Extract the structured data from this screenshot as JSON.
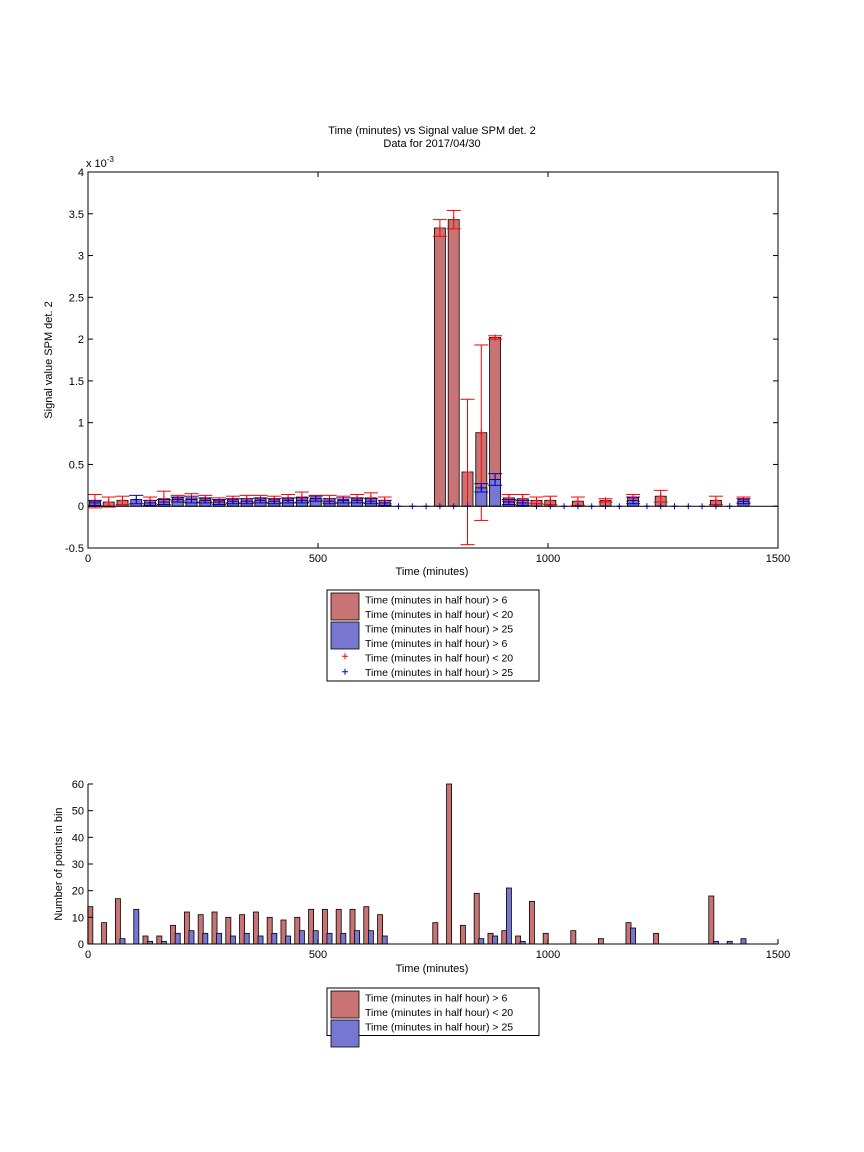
{
  "colors": {
    "red_bar": "#c87474",
    "blue_bar": "#7777d2",
    "red_marker": "#ff0000",
    "blue_marker": "#0000cc",
    "axis": "#000000"
  },
  "chart_data": [
    {
      "type": "bar",
      "title": "Time (minutes) vs Signal value SPM det. 2",
      "subtitle": "Data for 2017/04/30",
      "xlabel": "Time (minutes)",
      "ylabel": "Signal value SPM det. 2",
      "xlim": [
        0,
        1500
      ],
      "ylim": [
        -0.5,
        4
      ],
      "y_scale_label": "x 10^-3",
      "y_scale_text": "x 10",
      "y_scale_exp": "-3",
      "x_ticks": [
        0,
        500,
        1000,
        1500
      ],
      "y_ticks": [
        -0.5,
        0,
        0.5,
        1,
        1.5,
        2,
        2.5,
        3,
        3.5,
        4
      ],
      "grid": false,
      "legend_position": "below",
      "bar_width": 24,
      "series": [
        {
          "name": "Time (minutes in half hour) > 6\nTime (minutes in half hour) < 20",
          "color": "red_bar",
          "x": [
            15,
            45,
            75,
            135,
            165,
            195,
            225,
            255,
            285,
            315,
            345,
            375,
            405,
            435,
            465,
            495,
            525,
            555,
            585,
            615,
            645,
            765,
            795,
            825,
            855,
            885,
            915,
            945,
            975,
            1005,
            1065,
            1125,
            1185,
            1245,
            1365,
            1425
          ],
          "values": [
            0.06,
            0.05,
            0.07,
            0.07,
            0.09,
            0.1,
            0.1,
            0.09,
            0.07,
            0.08,
            0.09,
            0.09,
            0.08,
            0.09,
            0.11,
            0.1,
            0.09,
            0.08,
            0.09,
            0.1,
            0.07,
            3.33,
            3.43,
            0.41,
            0.88,
            2.02,
            0.1,
            0.09,
            0.07,
            0.07,
            0.06,
            0.07,
            0.1,
            0.12,
            0.07,
            0.08
          ],
          "err": [
            0.08,
            0.06,
            0.05,
            0.04,
            0.09,
            0.03,
            0.05,
            0.04,
            0.03,
            0.04,
            0.04,
            0.04,
            0.04,
            0.05,
            0.06,
            0.03,
            0.04,
            0.04,
            0.05,
            0.06,
            0.04,
            0.1,
            0.11,
            0.87,
            1.05,
            0.02,
            0.04,
            0.05,
            0.04,
            0.05,
            0.05,
            0.02,
            0.04,
            0.07,
            0.05,
            0.03
          ]
        },
        {
          "name": "Time (minutes in half hour) > 25",
          "color": "blue_bar",
          "x": [
            15,
            105,
            135,
            165,
            195,
            225,
            255,
            285,
            315,
            345,
            375,
            405,
            435,
            465,
            495,
            525,
            555,
            585,
            615,
            645,
            855,
            885,
            915,
            945,
            1185,
            1425
          ],
          "values": [
            0.04,
            0.08,
            0.04,
            0.05,
            0.08,
            0.08,
            0.07,
            0.05,
            0.06,
            0.06,
            0.07,
            0.06,
            0.07,
            0.07,
            0.09,
            0.06,
            0.07,
            0.07,
            0.06,
            0.04,
            0.22,
            0.32,
            0.05,
            0.04,
            0.07,
            0.06
          ],
          "err": [
            0.03,
            0.05,
            0.03,
            0.03,
            0.03,
            0.04,
            0.03,
            0.03,
            0.03,
            0.03,
            0.03,
            0.03,
            0.03,
            0.03,
            0.03,
            0.03,
            0.03,
            0.03,
            0.03,
            0.03,
            0.05,
            0.07,
            0.03,
            0.03,
            0.04,
            0.03
          ]
        }
      ],
      "markers": [
        {
          "name": "Time (minutes in half hour) > 6\nTime (minutes in half hour) < 20",
          "symbol": "+",
          "color": "red_marker",
          "x": [
            15,
            45,
            75,
            135,
            165,
            195,
            225,
            255,
            285,
            315,
            345,
            375,
            405,
            435,
            465,
            495,
            525,
            555,
            585,
            615,
            645,
            765,
            795,
            825,
            855,
            885,
            915,
            945,
            975,
            1005,
            1065,
            1125,
            1185,
            1245,
            1365,
            1425
          ],
          "y": [
            0.06,
            0.05,
            0.07,
            0.07,
            0.09,
            0.1,
            0.1,
            0.09,
            0.07,
            0.08,
            0.09,
            0.09,
            0.08,
            0.09,
            0.11,
            0.1,
            0.09,
            0.08,
            0.09,
            0.1,
            0.07,
            3.33,
            3.43,
            0.41,
            0.88,
            2.02,
            0.1,
            0.09,
            0.07,
            0.07,
            0.06,
            0.07,
            0.1,
            0.12,
            0.07,
            0.08
          ]
        },
        {
          "name": "Time (minutes in half hour) > 25",
          "symbol": "+",
          "color": "blue_marker",
          "x": [
            15,
            105,
            135,
            165,
            195,
            225,
            255,
            285,
            315,
            345,
            375,
            405,
            435,
            465,
            495,
            525,
            555,
            585,
            615,
            645,
            675,
            705,
            735,
            765,
            795,
            825,
            855,
            885,
            915,
            945,
            975,
            1005,
            1035,
            1065,
            1095,
            1125,
            1155,
            1185,
            1215,
            1245,
            1275,
            1305,
            1335,
            1365,
            1395,
            1425
          ],
          "y": [
            0.04,
            0.08,
            0.04,
            0.05,
            0.08,
            0.08,
            0.07,
            0.05,
            0.06,
            0.06,
            0.07,
            0.06,
            0.07,
            0.07,
            0.09,
            0.06,
            0.07,
            0.07,
            0.06,
            0.04,
            0,
            0,
            0,
            0,
            0,
            0,
            0.22,
            0.32,
            0.05,
            0.04,
            0,
            0,
            0,
            0,
            0,
            0,
            0,
            0.07,
            0,
            0,
            0,
            0,
            0,
            0,
            0,
            0.06
          ]
        }
      ],
      "legend": [
        {
          "label": "Time (minutes in half hour) > 6",
          "swatch": "red_bar"
        },
        {
          "label": "Time (minutes in half hour) < 20",
          "swatch": ""
        },
        {
          "label": "Time (minutes in half hour) > 25",
          "swatch": "blue_bar"
        },
        {
          "label": "Time (minutes in half hour) > 6",
          "swatch": ""
        },
        {
          "label": "Time (minutes in half hour) < 20",
          "swatch": "red_marker"
        },
        {
          "label": "Time (minutes in half hour) > 25",
          "swatch": "blue_marker"
        }
      ]
    },
    {
      "type": "bar",
      "xlabel": "Time (minutes)",
      "ylabel": "Number of points in bin",
      "xlim": [
        0,
        1500
      ],
      "ylim": [
        0,
        60
      ],
      "x_ticks": [
        0,
        500,
        1000,
        1500
      ],
      "y_ticks": [
        0,
        10,
        20,
        30,
        40,
        50,
        60
      ],
      "grid": false,
      "legend_position": "below",
      "bar_width": 11,
      "series": [
        {
          "name": "Time (minutes in half hour) > 6\nTime (minutes in half hour) < 20",
          "color": "red_bar",
          "x": [
            5,
            35,
            65,
            125,
            155,
            185,
            215,
            245,
            275,
            305,
            335,
            365,
            395,
            425,
            455,
            485,
            515,
            545,
            575,
            605,
            635,
            755,
            785,
            815,
            845,
            875,
            905,
            935,
            965,
            995,
            1055,
            1115,
            1175,
            1235,
            1355
          ],
          "values": [
            14,
            8,
            17,
            3,
            3,
            7,
            12,
            11,
            12,
            10,
            11,
            12,
            10,
            9,
            10,
            13,
            13,
            13,
            13,
            14,
            11,
            8,
            60,
            7,
            19,
            4,
            5,
            3,
            16,
            4,
            5,
            2,
            8,
            4,
            18
          ]
        },
        {
          "name": "Time (minutes in half hour) > 25",
          "color": "blue_bar",
          "x": [
            75,
            105,
            135,
            165,
            195,
            225,
            255,
            285,
            315,
            345,
            375,
            405,
            435,
            465,
            495,
            525,
            555,
            585,
            615,
            645,
            855,
            885,
            915,
            945,
            1185,
            1365,
            1395,
            1425
          ],
          "values": [
            2,
            13,
            1,
            1,
            4,
            5,
            4,
            4,
            3,
            4,
            3,
            4,
            3,
            5,
            5,
            4,
            4,
            5,
            5,
            3,
            2,
            3,
            21,
            1,
            6,
            1,
            1,
            2
          ]
        }
      ],
      "legend": [
        {
          "label": "Time (minutes in half hour) > 6",
          "swatch": "red_bar"
        },
        {
          "label": "Time (minutes in half hour) < 20",
          "swatch": ""
        },
        {
          "label": "Time (minutes in half hour) > 25",
          "swatch": "blue_bar"
        }
      ]
    }
  ]
}
